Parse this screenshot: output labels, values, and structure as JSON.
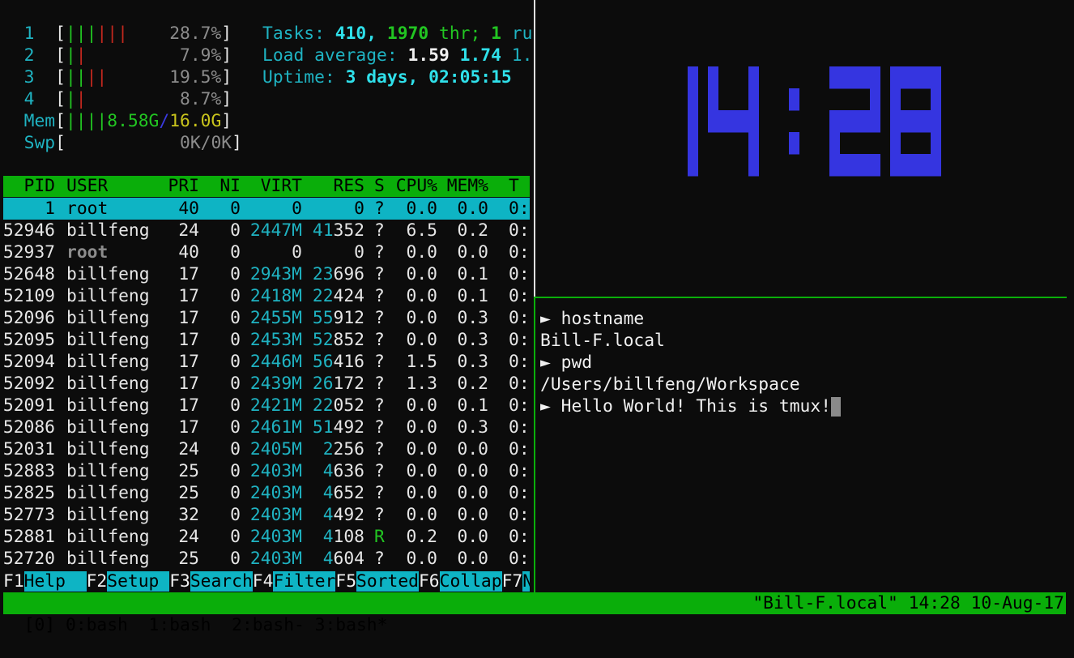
{
  "meters": {
    "cpus": [
      {
        "label": "1",
        "green": 3,
        "red": 3,
        "value": "28.7%"
      },
      {
        "label": "2",
        "green": 1,
        "red": 1,
        "value": "7.9%"
      },
      {
        "label": "3",
        "green": 2,
        "red": 2,
        "value": "19.5%"
      },
      {
        "label": "4",
        "green": 1,
        "red": 1,
        "value": "8.7%"
      }
    ],
    "mem": {
      "label": "Mem",
      "bars": 4,
      "used": "8.58G",
      "total": "16.0G"
    },
    "swp": {
      "label": "Swp",
      "used": "0K",
      "total": "0K"
    }
  },
  "summary": {
    "tasks_label": "Tasks:",
    "tasks": "410,",
    "threads": "1970",
    "thr_label": "thr;",
    "running": "1",
    "running_label": "ru",
    "load_label": "Load average:",
    "load1": "1.59",
    "load5": "1.74",
    "load15": "1.",
    "uptime_label": "Uptime:",
    "uptime": "3 days, 02:05:15"
  },
  "processes": {
    "columns": [
      "PID",
      "USER",
      "PRI",
      "NI",
      "VIRT",
      "RES",
      "S",
      "CPU%",
      "MEM%",
      "T"
    ],
    "rows": [
      {
        "pid": "1",
        "user": "root",
        "pri": "40",
        "ni": "0",
        "virt": "0",
        "res": "0",
        "s": "?",
        "cpu": "0.0",
        "mem": "0.0",
        "time": "0:",
        "selected": true
      },
      {
        "pid": "52946",
        "user": "billfeng",
        "pri": "24",
        "ni": "0",
        "virt": "2447M",
        "res": "41352",
        "s": "?",
        "cpu": "6.5",
        "mem": "0.2",
        "time": "0:"
      },
      {
        "pid": "52937",
        "user": "root",
        "pri": "40",
        "ni": "0",
        "virt": "0",
        "res": "0",
        "s": "?",
        "cpu": "0.0",
        "mem": "0.0",
        "time": "0:"
      },
      {
        "pid": "52648",
        "user": "billfeng",
        "pri": "17",
        "ni": "0",
        "virt": "2943M",
        "res": "23696",
        "s": "?",
        "cpu": "0.0",
        "mem": "0.1",
        "time": "0:"
      },
      {
        "pid": "52109",
        "user": "billfeng",
        "pri": "17",
        "ni": "0",
        "virt": "2418M",
        "res": "22424",
        "s": "?",
        "cpu": "0.0",
        "mem": "0.1",
        "time": "0:"
      },
      {
        "pid": "52096",
        "user": "billfeng",
        "pri": "17",
        "ni": "0",
        "virt": "2455M",
        "res": "55912",
        "s": "?",
        "cpu": "0.0",
        "mem": "0.3",
        "time": "0:"
      },
      {
        "pid": "52095",
        "user": "billfeng",
        "pri": "17",
        "ni": "0",
        "virt": "2453M",
        "res": "52852",
        "s": "?",
        "cpu": "0.0",
        "mem": "0.3",
        "time": "0:"
      },
      {
        "pid": "52094",
        "user": "billfeng",
        "pri": "17",
        "ni": "0",
        "virt": "2446M",
        "res": "56416",
        "s": "?",
        "cpu": "1.5",
        "mem": "0.3",
        "time": "0:"
      },
      {
        "pid": "52092",
        "user": "billfeng",
        "pri": "17",
        "ni": "0",
        "virt": "2439M",
        "res": "26172",
        "s": "?",
        "cpu": "1.3",
        "mem": "0.2",
        "time": "0:"
      },
      {
        "pid": "52091",
        "user": "billfeng",
        "pri": "17",
        "ni": "0",
        "virt": "2421M",
        "res": "22052",
        "s": "?",
        "cpu": "0.0",
        "mem": "0.1",
        "time": "0:"
      },
      {
        "pid": "52086",
        "user": "billfeng",
        "pri": "17",
        "ni": "0",
        "virt": "2461M",
        "res": "51492",
        "s": "?",
        "cpu": "0.0",
        "mem": "0.3",
        "time": "0:"
      },
      {
        "pid": "52031",
        "user": "billfeng",
        "pri": "24",
        "ni": "0",
        "virt": "2405M",
        "res": "2256",
        "s": "?",
        "cpu": "0.0",
        "mem": "0.0",
        "time": "0:"
      },
      {
        "pid": "52883",
        "user": "billfeng",
        "pri": "25",
        "ni": "0",
        "virt": "2403M",
        "res": "4636",
        "s": "?",
        "cpu": "0.0",
        "mem": "0.0",
        "time": "0:"
      },
      {
        "pid": "52825",
        "user": "billfeng",
        "pri": "25",
        "ni": "0",
        "virt": "2403M",
        "res": "4652",
        "s": "?",
        "cpu": "0.0",
        "mem": "0.0",
        "time": "0:"
      },
      {
        "pid": "52773",
        "user": "billfeng",
        "pri": "32",
        "ni": "0",
        "virt": "2403M",
        "res": "4492",
        "s": "?",
        "cpu": "0.0",
        "mem": "0.0",
        "time": "0:"
      },
      {
        "pid": "52881",
        "user": "billfeng",
        "pri": "24",
        "ni": "0",
        "virt": "2403M",
        "res": "4108",
        "s": "R",
        "cpu": "0.2",
        "mem": "0.0",
        "time": "0:"
      },
      {
        "pid": "52720",
        "user": "billfeng",
        "pri": "25",
        "ni": "0",
        "virt": "2403M",
        "res": "4604",
        "s": "?",
        "cpu": "0.0",
        "mem": "0.0",
        "time": "0:"
      }
    ]
  },
  "function_keys": [
    {
      "key": "F1",
      "label": "Help  "
    },
    {
      "key": "F2",
      "label": "Setup "
    },
    {
      "key": "F3",
      "label": "Search"
    },
    {
      "key": "F4",
      "label": "Filter"
    },
    {
      "key": "F5",
      "label": "Sorted"
    },
    {
      "key": "F6",
      "label": "Collap"
    },
    {
      "key": "F7",
      "label": "N"
    }
  ],
  "clock": {
    "time": "14:28",
    "color": "#3535e0"
  },
  "shell": {
    "prompt_symbol": "►",
    "lines": [
      {
        "type": "cmd",
        "text": "hostname"
      },
      {
        "type": "out",
        "text": "Bill-F.local"
      },
      {
        "type": "cmd",
        "text": "pwd"
      },
      {
        "type": "out",
        "text": "/Users/billfeng/Workspace"
      },
      {
        "type": "cmd",
        "text": "Hello World! This is tmux!",
        "cursor": true
      }
    ]
  },
  "status_bar": {
    "left": "[0] 0:bash  1:bash  2:bash- 3:bash*",
    "right": "\"Bill-F.local\" 14:28 10-Aug-17",
    "color": "#0aae0a"
  }
}
